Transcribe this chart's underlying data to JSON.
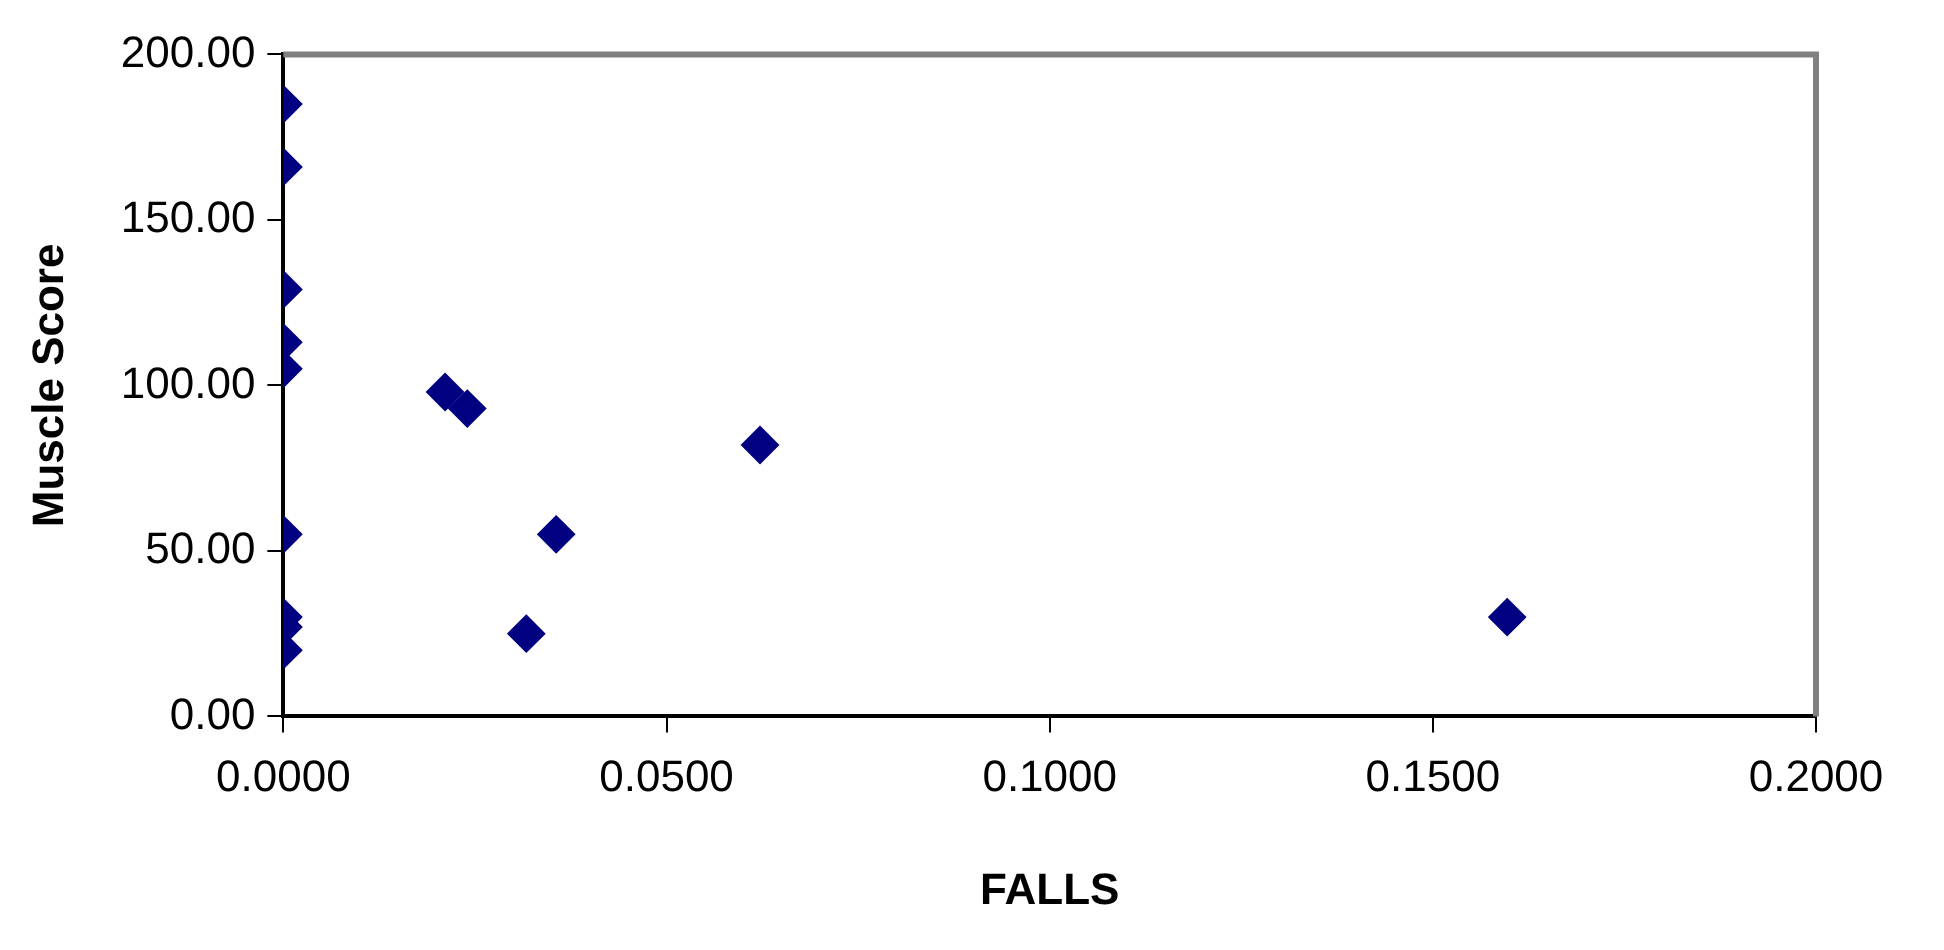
{
  "chart_data": {
    "type": "scatter",
    "xlabel": "FALLS",
    "ylabel": "Muscle Score",
    "x": [
      0,
      0,
      0,
      0,
      0,
      0,
      0,
      0,
      0,
      0.0211,
      0.024,
      0.0356,
      0.0317,
      0.0622,
      0.1597
    ],
    "series": [
      {
        "color": "#000080",
        "values": [
          185,
          166,
          129,
          113,
          105,
          55,
          30,
          27,
          20,
          98,
          93,
          55,
          25,
          82,
          30
        ]
      }
    ],
    "xlim": [
      0,
      0.2
    ],
    "xticks": [
      {
        "value": 0,
        "label": "0.0000"
      },
      {
        "value": 0.05,
        "label": "0.0500"
      },
      {
        "value": 0.1,
        "label": "0.1000"
      },
      {
        "value": 0.15,
        "label": "0.1500"
      },
      {
        "value": 0.2,
        "label": "0.2000"
      }
    ],
    "ylim": [
      0,
      200
    ],
    "yticks": [
      {
        "value": 0,
        "label": "0.00"
      },
      {
        "value": 50,
        "label": "50.00"
      },
      {
        "value": 100,
        "label": "100.00"
      },
      {
        "value": 150,
        "label": "150.00"
      },
      {
        "value": 200,
        "label": "200.00"
      }
    ],
    "grid": false,
    "legend": false,
    "marker": "diamond"
  }
}
